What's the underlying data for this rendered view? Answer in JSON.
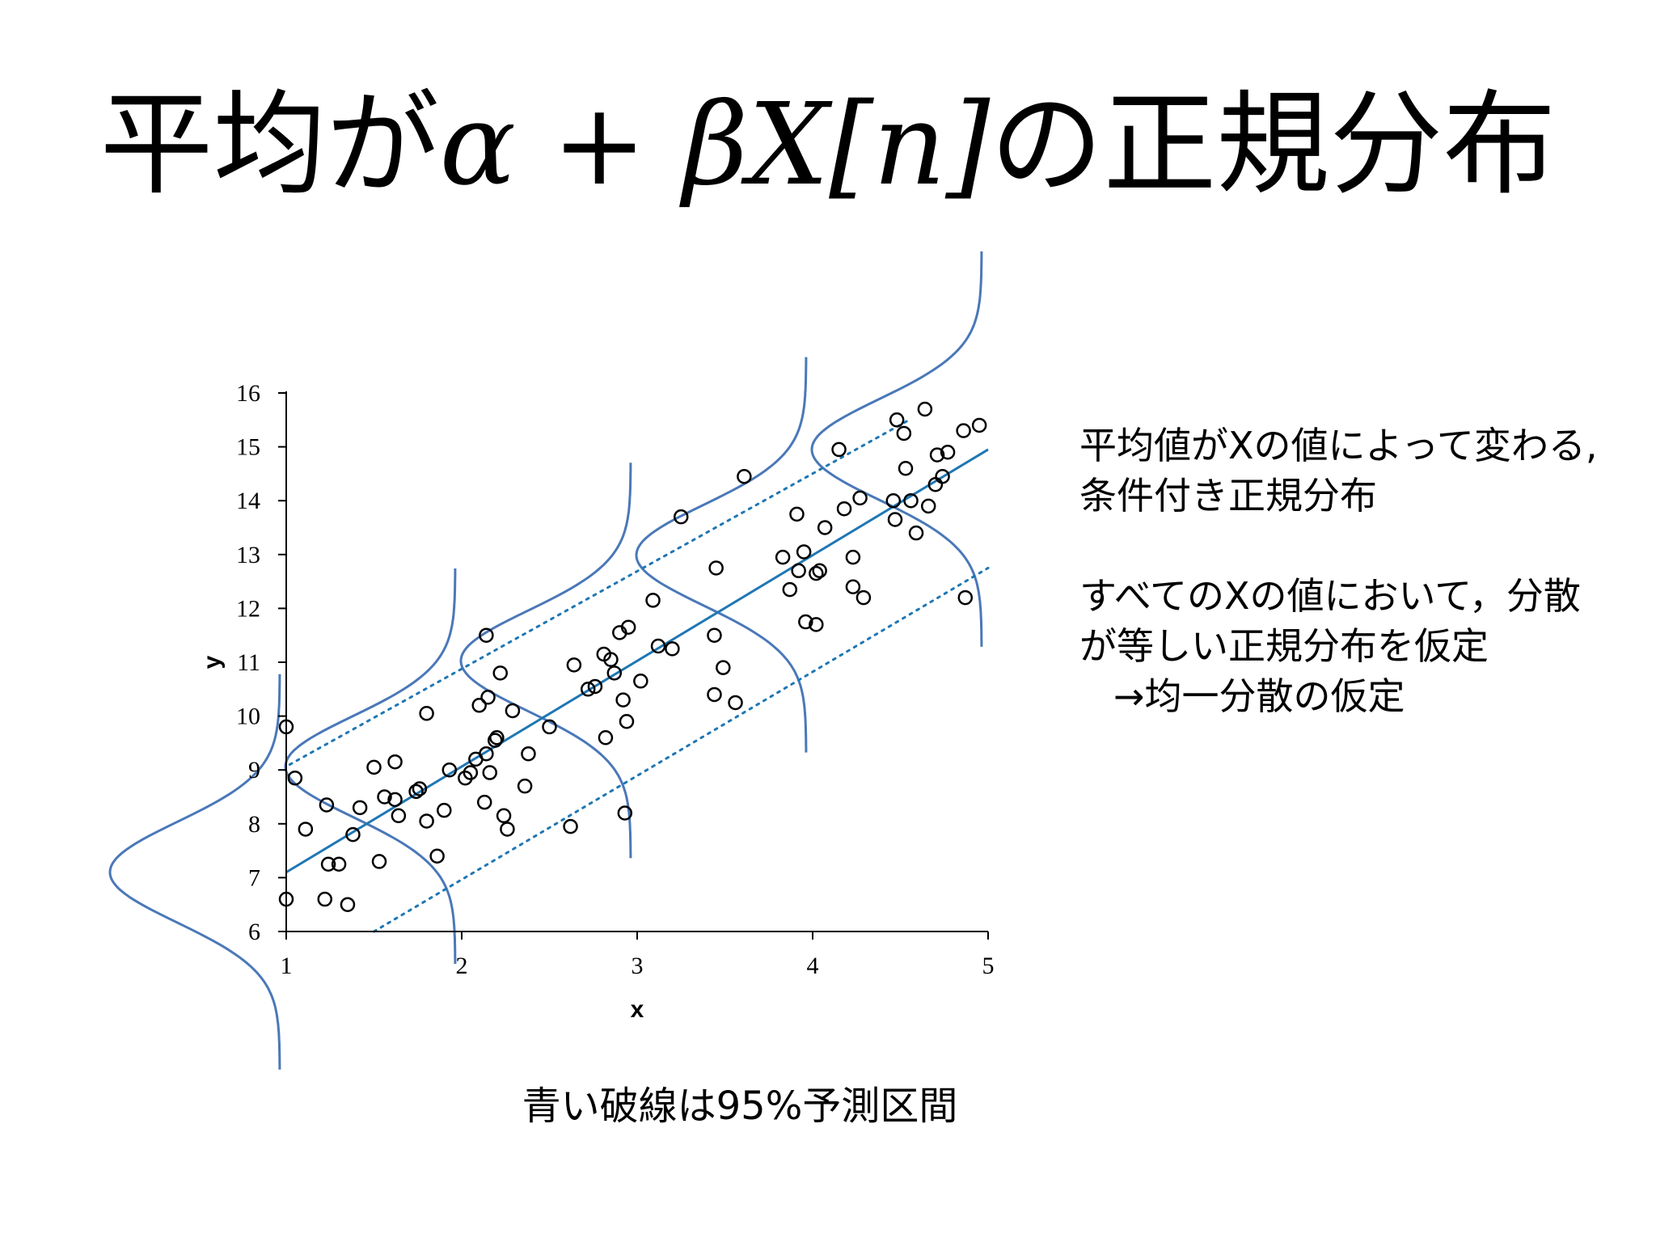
{
  "title": {
    "prefix": "平均が",
    "formula": "α + βX[n]",
    "suffix": "の正規分布"
  },
  "notes": {
    "line1": "平均値がXの値によって変わる,",
    "line2": "条件付き正規分布",
    "line3": "すべてのXの値において，分散",
    "line4": "が等しい正規分布を仮定",
    "line5": "→均一分散の仮定"
  },
  "caption": "青い破線は95%予測区間",
  "colors": {
    "regression_line": "#1f77b4",
    "normal_curves": "#4a78b8",
    "markers": "#000000"
  },
  "chart_data": {
    "type": "scatter",
    "title": "",
    "xlabel": "x",
    "ylabel": "y",
    "xlim": [
      1,
      5
    ],
    "ylim": [
      6,
      16
    ],
    "xticks": [
      "1",
      "2",
      "3",
      "4",
      "5"
    ],
    "yticks": [
      "6",
      "7",
      "8",
      "9",
      "10",
      "11",
      "12",
      "13",
      "14",
      "15",
      "16"
    ],
    "grid": false,
    "regression_line": {
      "x": [
        1,
        5
      ],
      "y": [
        7.1,
        14.95
      ]
    },
    "prediction_interval_95": {
      "upper": {
        "x": [
          1.02,
          4.55
        ],
        "y": [
          9.1,
          15.5
        ]
      },
      "lower": {
        "x": [
          1.5,
          5
        ],
        "y": [
          6.0,
          12.75
        ]
      }
    },
    "normal_curves_centered_at_x": [
      1,
      2,
      3,
      4,
      5
    ],
    "points": [
      {
        "x": 1.0,
        "y": 9.8
      },
      {
        "x": 1.0,
        "y": 6.6
      },
      {
        "x": 1.05,
        "y": 8.85
      },
      {
        "x": 1.11,
        "y": 7.9
      },
      {
        "x": 1.23,
        "y": 8.35
      },
      {
        "x": 1.22,
        "y": 6.6
      },
      {
        "x": 1.24,
        "y": 7.25
      },
      {
        "x": 1.3,
        "y": 7.25
      },
      {
        "x": 1.35,
        "y": 6.5
      },
      {
        "x": 1.38,
        "y": 7.8
      },
      {
        "x": 1.42,
        "y": 8.3
      },
      {
        "x": 1.5,
        "y": 9.05
      },
      {
        "x": 1.53,
        "y": 7.3
      },
      {
        "x": 1.56,
        "y": 8.5
      },
      {
        "x": 1.62,
        "y": 9.15
      },
      {
        "x": 1.62,
        "y": 8.45
      },
      {
        "x": 1.64,
        "y": 8.15
      },
      {
        "x": 1.74,
        "y": 8.6
      },
      {
        "x": 1.76,
        "y": 8.65
      },
      {
        "x": 1.8,
        "y": 8.05
      },
      {
        "x": 1.8,
        "y": 10.05
      },
      {
        "x": 1.86,
        "y": 7.4
      },
      {
        "x": 1.9,
        "y": 8.25
      },
      {
        "x": 1.93,
        "y": 9.0
      },
      {
        "x": 2.02,
        "y": 8.85
      },
      {
        "x": 2.05,
        "y": 8.95
      },
      {
        "x": 2.08,
        "y": 9.2
      },
      {
        "x": 2.1,
        "y": 10.2
      },
      {
        "x": 2.13,
        "y": 8.4
      },
      {
        "x": 2.14,
        "y": 9.3
      },
      {
        "x": 2.14,
        "y": 11.5
      },
      {
        "x": 2.15,
        "y": 10.35
      },
      {
        "x": 2.16,
        "y": 8.95
      },
      {
        "x": 2.19,
        "y": 9.55
      },
      {
        "x": 2.2,
        "y": 9.6
      },
      {
        "x": 2.22,
        "y": 10.8
      },
      {
        "x": 2.24,
        "y": 8.15
      },
      {
        "x": 2.26,
        "y": 7.9
      },
      {
        "x": 2.29,
        "y": 10.1
      },
      {
        "x": 2.36,
        "y": 8.7
      },
      {
        "x": 2.38,
        "y": 9.3
      },
      {
        "x": 2.5,
        "y": 9.8
      },
      {
        "x": 2.62,
        "y": 7.95
      },
      {
        "x": 2.64,
        "y": 10.95
      },
      {
        "x": 2.72,
        "y": 10.5
      },
      {
        "x": 2.76,
        "y": 10.55
      },
      {
        "x": 2.81,
        "y": 11.15
      },
      {
        "x": 2.82,
        "y": 9.6
      },
      {
        "x": 2.85,
        "y": 11.05
      },
      {
        "x": 2.87,
        "y": 10.8
      },
      {
        "x": 2.9,
        "y": 11.55
      },
      {
        "x": 2.92,
        "y": 10.3
      },
      {
        "x": 2.93,
        "y": 8.2
      },
      {
        "x": 2.94,
        "y": 9.9
      },
      {
        "x": 2.95,
        "y": 11.65
      },
      {
        "x": 3.02,
        "y": 10.65
      },
      {
        "x": 3.09,
        "y": 12.15
      },
      {
        "x": 3.12,
        "y": 11.3
      },
      {
        "x": 3.2,
        "y": 11.25
      },
      {
        "x": 3.25,
        "y": 13.7
      },
      {
        "x": 3.44,
        "y": 11.5
      },
      {
        "x": 3.44,
        "y": 10.4
      },
      {
        "x": 3.45,
        "y": 12.75
      },
      {
        "x": 3.49,
        "y": 10.9
      },
      {
        "x": 3.56,
        "y": 10.25
      },
      {
        "x": 3.61,
        "y": 14.45
      },
      {
        "x": 3.83,
        "y": 12.95
      },
      {
        "x": 3.87,
        "y": 12.35
      },
      {
        "x": 3.91,
        "y": 13.75
      },
      {
        "x": 3.92,
        "y": 12.7
      },
      {
        "x": 3.95,
        "y": 13.05
      },
      {
        "x": 3.96,
        "y": 11.75
      },
      {
        "x": 4.02,
        "y": 11.7
      },
      {
        "x": 4.02,
        "y": 12.65
      },
      {
        "x": 4.04,
        "y": 12.7
      },
      {
        "x": 4.07,
        "y": 13.5
      },
      {
        "x": 4.15,
        "y": 14.95
      },
      {
        "x": 4.18,
        "y": 13.85
      },
      {
        "x": 4.23,
        "y": 12.95
      },
      {
        "x": 4.23,
        "y": 12.4
      },
      {
        "x": 4.27,
        "y": 14.05
      },
      {
        "x": 4.29,
        "y": 12.2
      },
      {
        "x": 4.46,
        "y": 14.0
      },
      {
        "x": 4.47,
        "y": 13.65
      },
      {
        "x": 4.48,
        "y": 15.5
      },
      {
        "x": 4.52,
        "y": 15.25
      },
      {
        "x": 4.53,
        "y": 14.6
      },
      {
        "x": 4.56,
        "y": 14.0
      },
      {
        "x": 4.59,
        "y": 13.4
      },
      {
        "x": 4.64,
        "y": 15.7
      },
      {
        "x": 4.66,
        "y": 13.9
      },
      {
        "x": 4.7,
        "y": 14.3
      },
      {
        "x": 4.71,
        "y": 14.85
      },
      {
        "x": 4.74,
        "y": 14.45
      },
      {
        "x": 4.77,
        "y": 14.9
      },
      {
        "x": 4.86,
        "y": 15.3
      },
      {
        "x": 4.87,
        "y": 12.2
      },
      {
        "x": 4.95,
        "y": 15.4
      }
    ]
  }
}
